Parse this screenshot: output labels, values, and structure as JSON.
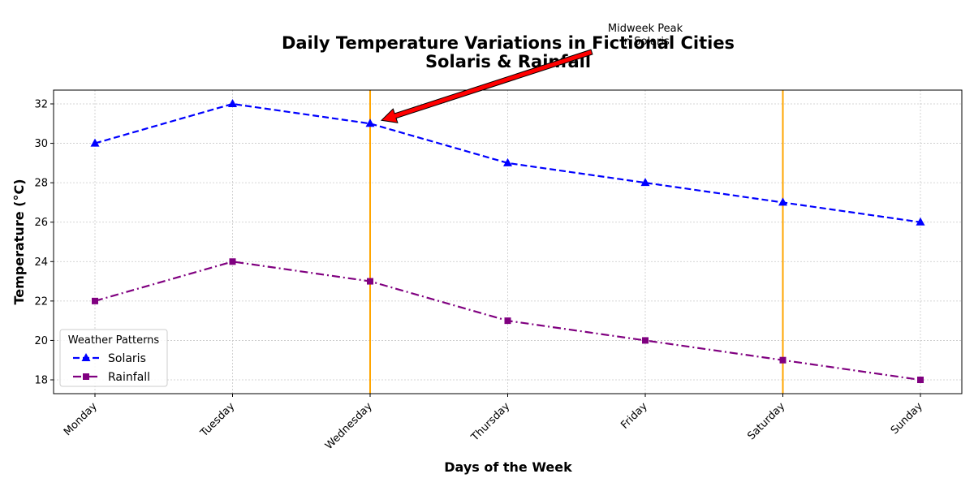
{
  "chart_data": {
    "type": "line",
    "title_line1": "Daily Temperature Variations in Fictional Cities",
    "title_line2": "Solaris & Rainfall",
    "xlabel": "Days of the Week",
    "ylabel": "Temperature (°C)",
    "categories": [
      "Monday",
      "Tuesday",
      "Wednesday",
      "Thursday",
      "Friday",
      "Saturday",
      "Sunday"
    ],
    "ylim": [
      17.3,
      32.7
    ],
    "yticks": [
      18,
      20,
      22,
      24,
      26,
      28,
      30,
      32
    ],
    "grid": true,
    "legend_title": "Weather Patterns",
    "legend_position": "lower-left",
    "series": [
      {
        "name": "Solaris",
        "values": [
          30,
          32,
          31,
          29,
          28,
          27,
          26
        ],
        "color": "#0000ff",
        "marker": "triangle",
        "linestyle": "dashed"
      },
      {
        "name": "Rainfall",
        "values": [
          22,
          24,
          23,
          21,
          20,
          19,
          18
        ],
        "color": "#800080",
        "marker": "square",
        "linestyle": "dashdot"
      }
    ],
    "vertical_lines": {
      "categories": [
        "Wednesday",
        "Saturday"
      ],
      "color": "#ffa500"
    },
    "annotation": {
      "text_line1": "Midweek Peak",
      "text_line2": "in Solaris",
      "target_category": "Wednesday",
      "target_value": 31,
      "arrow_color": "#ff0000"
    }
  }
}
